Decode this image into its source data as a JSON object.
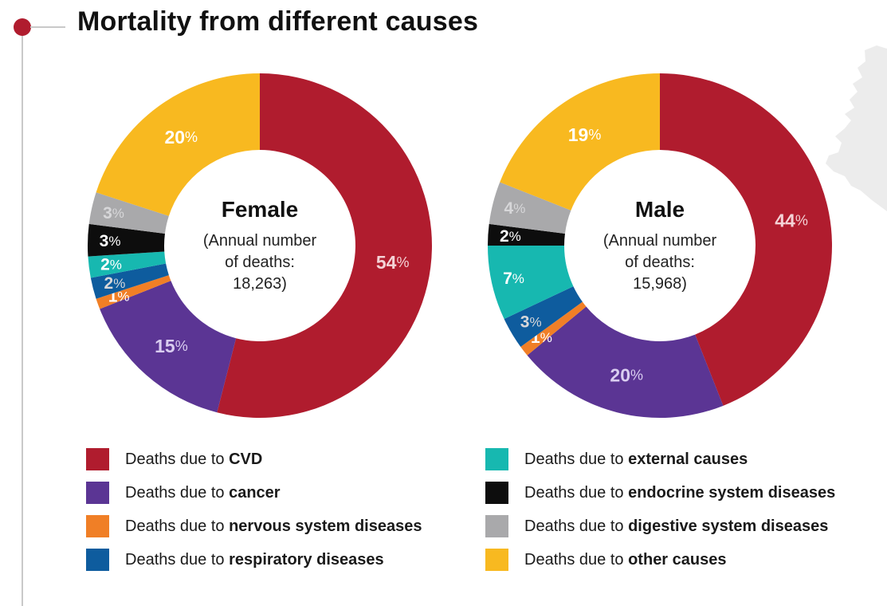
{
  "page": {
    "title": "Mortality from different causes"
  },
  "colors": {
    "cvd": "#b01c2e",
    "cancer": "#5b3594",
    "nervous": "#f07f26",
    "respiratory": "#0e5c9e",
    "external": "#17b8b0",
    "endocrine": "#0d0d0d",
    "digestive": "#a9a9ab",
    "other": "#f8b920",
    "accent": "#b01c2e"
  },
  "legend": {
    "prefix": "Deaths due to",
    "items": [
      {
        "key": "cvd",
        "label": "CVD"
      },
      {
        "key": "cancer",
        "label": "cancer"
      },
      {
        "key": "nervous",
        "label": "nervous system diseases"
      },
      {
        "key": "respiratory",
        "label": "respiratory diseases"
      },
      {
        "key": "external",
        "label": "external causes"
      },
      {
        "key": "endocrine",
        "label": "endocrine system diseases"
      },
      {
        "key": "digestive",
        "label": "digestive system diseases"
      },
      {
        "key": "other",
        "label": "other causes"
      }
    ]
  },
  "chart_data": [
    {
      "type": "pie",
      "title": "Female",
      "center_lines": [
        "(Annual number",
        "of deaths:",
        "18,263)"
      ],
      "slices": [
        {
          "key": "cvd",
          "label": "Deaths due to CVD",
          "value": 54,
          "display": "54"
        },
        {
          "key": "cancer",
          "label": "Deaths due to cancer",
          "value": 15,
          "display": "15"
        },
        {
          "key": "nervous",
          "label": "Deaths due to nervous system diseases",
          "value": 1,
          "display": "1"
        },
        {
          "key": "respiratory",
          "label": "Deaths due to respiratory diseases",
          "value": 2,
          "display": "2"
        },
        {
          "key": "external",
          "label": "Deaths due to external causes",
          "value": 2,
          "display": "2"
        },
        {
          "key": "endocrine",
          "label": "Deaths due to endocrine system diseases",
          "value": 3,
          "display": "3"
        },
        {
          "key": "digestive",
          "label": "Deaths due to digestive system diseases",
          "value": 3,
          "display": "3"
        },
        {
          "key": "other",
          "label": "Deaths due to other causes",
          "value": 20,
          "display": "20"
        }
      ],
      "unit": "%"
    },
    {
      "type": "pie",
      "title": "Male",
      "center_lines": [
        "(Annual number",
        "of deaths:",
        "15,968)"
      ],
      "slices": [
        {
          "key": "cvd",
          "label": "Deaths due to CVD",
          "value": 44,
          "display": "44"
        },
        {
          "key": "cancer",
          "label": "Deaths due to cancer",
          "value": 20,
          "display": "20"
        },
        {
          "key": "nervous",
          "label": "Deaths due to nervous system diseases",
          "value": 1,
          "display": "1"
        },
        {
          "key": "respiratory",
          "label": "Deaths due to respiratory diseases",
          "value": 3,
          "display": "3"
        },
        {
          "key": "external",
          "label": "Deaths due to external causes",
          "value": 7,
          "display": "7"
        },
        {
          "key": "endocrine",
          "label": "Deaths due to endocrine system diseases",
          "value": 2,
          "display": "2"
        },
        {
          "key": "digestive",
          "label": "Deaths due to digestive system diseases",
          "value": 4,
          "display": "4"
        },
        {
          "key": "other",
          "label": "Deaths due to other causes",
          "value": 19,
          "display": "19"
        }
      ],
      "unit": "%"
    }
  ]
}
